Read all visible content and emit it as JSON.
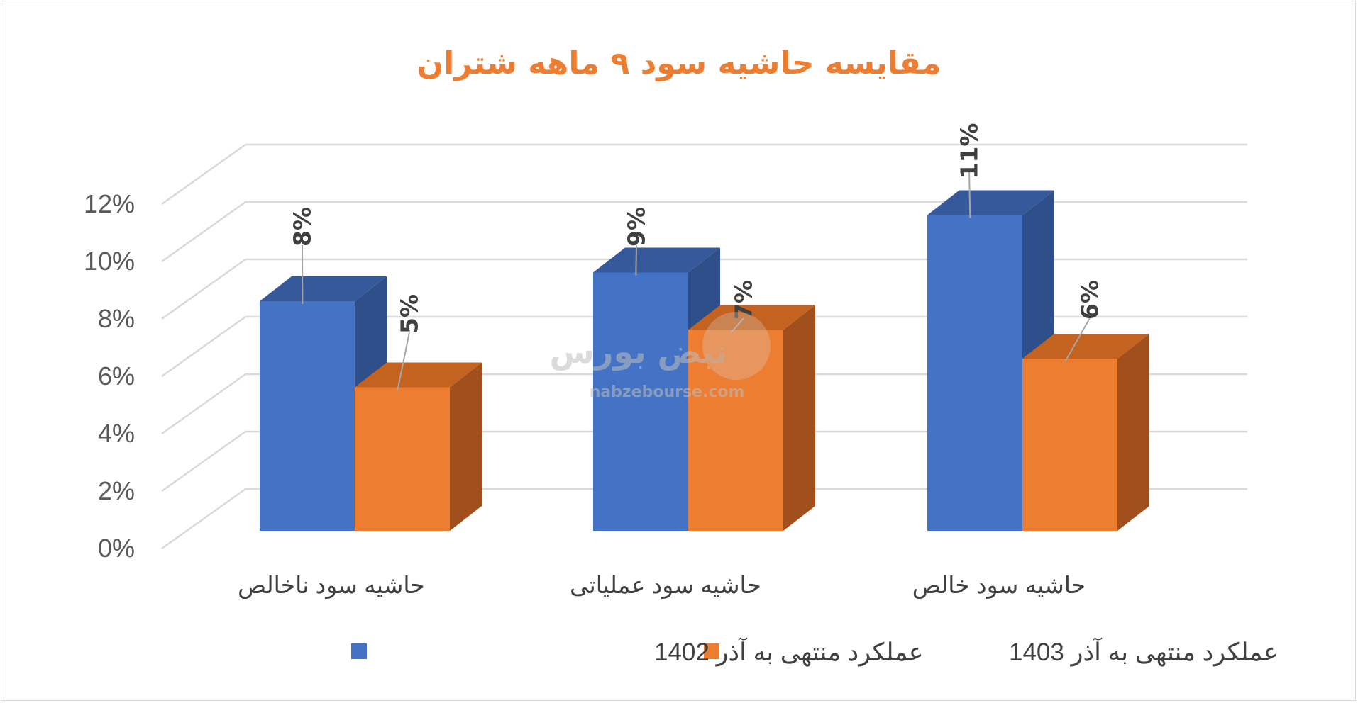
{
  "chart_data": {
    "type": "bar",
    "title": "مقایسه حاشیه سود ۹ ماهه شتران",
    "categories": [
      "حاشیه سود ناخالص",
      "حاشیه سود عملیاتی",
      "حاشیه سود خالص"
    ],
    "series": [
      {
        "name": "عملکرد منتهی به آذر 1402",
        "color": "#4472c4",
        "side": "#2f4f8a",
        "top": "#36599b",
        "values": [
          8,
          9,
          11
        ],
        "labels": [
          "8%",
          "9%",
          "11%"
        ]
      },
      {
        "name": "عملکرد منتهی به آذر 1403",
        "color": "#ed7d31",
        "side": "#a1501d",
        "top": "#c4621f",
        "values": [
          5,
          7,
          6
        ],
        "labels": [
          "5%",
          "7%",
          "6%"
        ]
      }
    ],
    "ylim": [
      0,
      12
    ],
    "yticks": [
      "0%",
      "2%",
      "4%",
      "6%",
      "8%",
      "10%",
      "12%"
    ],
    "grid": true,
    "legend": "bottom",
    "style": "3d-clustered-column"
  },
  "watermark": {
    "brand": "نبض بورس",
    "url": "nabzebourse.com"
  }
}
